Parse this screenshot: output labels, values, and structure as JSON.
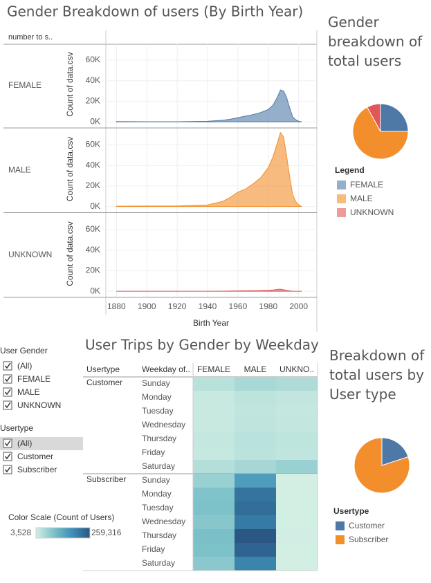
{
  "chart_data": [
    {
      "type": "area",
      "title": "Gender Breakdown of users (By Birth Year)",
      "header": "number to s..",
      "y_label": "Count of data.csv",
      "x_label": "Birth Year",
      "x": [
        1880,
        1900,
        1920,
        1940,
        1950,
        1955,
        1960,
        1965,
        1970,
        1975,
        1980,
        1983,
        1986,
        1988,
        1990,
        1992,
        1994,
        1996,
        1998,
        2000,
        2002
      ],
      "xlim": [
        1873,
        2012
      ],
      "xticks": [
        1880,
        1900,
        1920,
        1940,
        1960,
        1980,
        2000
      ],
      "ylim": [
        -6000,
        75500
      ],
      "yticks": [
        {
          "value": 0,
          "label": "0K"
        },
        {
          "value": 20000,
          "label": "20K"
        },
        {
          "value": 40000,
          "label": "40K"
        },
        {
          "value": 60000,
          "label": "60K"
        }
      ],
      "grid": true,
      "series": [
        {
          "name": "FEMALE",
          "color": "#4e79a7",
          "values": [
            200,
            100,
            100,
            500,
            1500,
            2500,
            4000,
            5500,
            7000,
            9000,
            12000,
            16000,
            24000,
            31000,
            30000,
            24000,
            14000,
            5000,
            2000,
            500,
            0
          ]
        },
        {
          "name": "MALE",
          "color": "#f28e2b",
          "values": [
            300,
            500,
            500,
            1500,
            5000,
            9000,
            14000,
            17000,
            22000,
            28000,
            38000,
            48000,
            62000,
            72000,
            68000,
            50000,
            30000,
            12000,
            5000,
            1500,
            0
          ]
        },
        {
          "name": "UNKNOWN",
          "color": "#e15759",
          "values": [
            0,
            0,
            0,
            0,
            100,
            200,
            300,
            400,
            500,
            600,
            800,
            1200,
            1800,
            2000,
            1500,
            800,
            300,
            100,
            0,
            0,
            0
          ]
        }
      ]
    },
    {
      "type": "pie",
      "title": "Gender breakdown of total users",
      "legend_title": "Legend",
      "categories": [
        "FEMALE",
        "MALE",
        "UNKNOWN"
      ],
      "values": [
        25,
        67,
        8
      ],
      "colors": [
        "#4e79a7",
        "#f28e2b",
        "#e15759"
      ]
    },
    {
      "type": "heatmap",
      "title": "User Trips by Gender by Weekday",
      "row_header": "Usertype",
      "col_header": "Weekday of..",
      "columns": [
        "FEMALE",
        "MALE",
        "UNKNO.."
      ],
      "groups": [
        {
          "name": "Customer",
          "rows": [
            "Sunday",
            "Monday",
            "Tuesday",
            "Wednesday",
            "Thursday",
            "Friday",
            "Saturday"
          ],
          "values": [
            [
              30000,
              45000,
              40000
            ],
            [
              15000,
              25000,
              20000
            ],
            [
              14000,
              22000,
              18000
            ],
            [
              15000,
              23000,
              19000
            ],
            [
              18000,
              28000,
              24000
            ],
            [
              17000,
              27000,
              22000
            ],
            [
              35000,
              48000,
              60000
            ]
          ]
        },
        {
          "name": "Subscriber",
          "rows": [
            "Sunday",
            "Monday",
            "Tuesday",
            "Wednesday",
            "Thursday",
            "Friday",
            "Saturday"
          ],
          "values": [
            [
              60000,
              150000,
              3528
            ],
            [
              85000,
              215000,
              4000
            ],
            [
              88000,
              225000,
              4200
            ],
            [
              78000,
              205000,
              4100
            ],
            [
              90000,
              259316,
              4500
            ],
            [
              88000,
              240000,
              4300
            ],
            [
              75000,
              190000,
              3800
            ]
          ]
        }
      ],
      "color_range": [
        "#d3efe4",
        "#7cc1c9",
        "#3d8fb8",
        "#2a5783"
      ],
      "color_scale": {
        "title": "Color Scale (Count of Users)",
        "min": {
          "value": 3528,
          "label": "3,528"
        },
        "max": {
          "value": 259316,
          "label": "259,316"
        }
      }
    },
    {
      "type": "pie",
      "title": "Breakdown of total users by User type",
      "legend_title": "Usertype",
      "categories": [
        "Customer",
        "Subscriber"
      ],
      "values": [
        20,
        80
      ],
      "colors": [
        "#4e79a7",
        "#f28e2b"
      ]
    }
  ],
  "filters": [
    {
      "title": "User Gender",
      "options": [
        "(All)",
        "FEMALE",
        "MALE",
        "UNKNOWN"
      ]
    },
    {
      "title": "Usertype",
      "options": [
        "(All)",
        "Customer",
        "Subscriber"
      ]
    }
  ]
}
